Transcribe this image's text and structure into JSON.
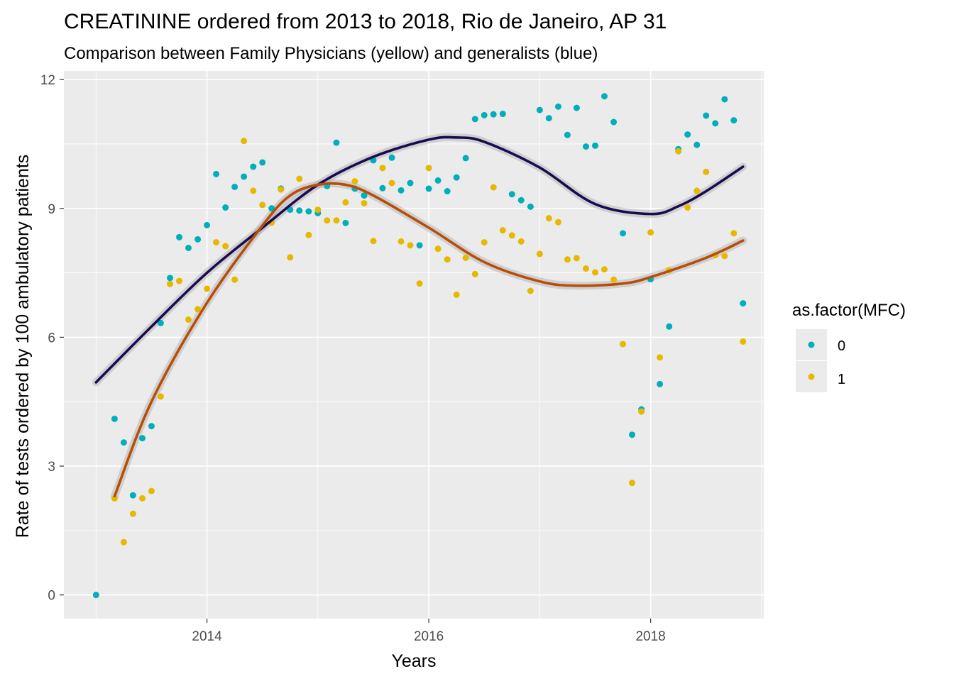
{
  "chart_data": {
    "type": "scatter",
    "title": "CREATININE ordered from 2013 to 2018, Rio de Janeiro, AP 31",
    "subtitle": "Comparison between Family Physicians (yellow) and generalists (blue)",
    "xlabel": "Years",
    "ylabel": "Rate of tests ordered by 100 ambulatory patients",
    "xlim": [
      2012.71,
      2019.02
    ],
    "ylim": [
      -0.55,
      12.2
    ],
    "x_ticks": [
      2014,
      2016,
      2018
    ],
    "x_tick_labels": [
      "2014",
      "2016",
      "2018"
    ],
    "y_ticks": [
      0,
      3,
      6,
      9,
      12
    ],
    "y_tick_labels": [
      "0",
      "3",
      "6",
      "9",
      "12"
    ],
    "grid": true,
    "legend": {
      "title": "as.factor(MFC)",
      "position": "right",
      "entries": [
        "0",
        "1"
      ]
    },
    "series": [
      {
        "name": "0",
        "color": "#00AFBB",
        "x": [
          2013.0,
          2013.167,
          2013.25,
          2013.333,
          2013.417,
          2013.5,
          2013.583,
          2013.667,
          2013.75,
          2013.833,
          2013.917,
          2014.0,
          2014.083,
          2014.167,
          2014.25,
          2014.333,
          2014.417,
          2014.5,
          2014.583,
          2014.667,
          2014.75,
          2014.833,
          2014.917,
          2015.0,
          2015.083,
          2015.167,
          2015.25,
          2015.333,
          2015.417,
          2015.5,
          2015.583,
          2015.667,
          2015.75,
          2015.833,
          2015.917,
          2016.0,
          2016.083,
          2016.167,
          2016.25,
          2016.333,
          2016.417,
          2016.5,
          2016.583,
          2016.667,
          2016.75,
          2016.833,
          2016.917,
          2017.0,
          2017.083,
          2017.167,
          2017.25,
          2017.333,
          2017.417,
          2017.5,
          2017.583,
          2017.667,
          2017.75,
          2017.833,
          2017.917,
          2018.0,
          2018.083,
          2018.167,
          2018.25,
          2018.333,
          2018.417,
          2018.5,
          2018.583,
          2018.667,
          2018.75,
          2018.833
        ],
        "values": [
          0.0,
          4.1,
          3.55,
          2.32,
          3.65,
          3.93,
          6.33,
          7.38,
          8.33,
          8.08,
          8.28,
          8.61,
          9.8,
          9.02,
          9.5,
          9.74,
          9.97,
          10.07,
          9.0,
          9.46,
          8.97,
          8.95,
          8.93,
          8.89,
          9.52,
          10.53,
          8.66,
          9.46,
          9.3,
          10.12,
          9.47,
          10.18,
          9.42,
          9.59,
          8.14,
          9.46,
          9.65,
          9.4,
          9.72,
          10.17,
          11.08,
          11.17,
          11.19,
          11.2,
          9.33,
          9.19,
          9.04,
          11.29,
          11.1,
          11.37,
          10.71,
          11.34,
          10.44,
          10.46,
          11.61,
          11.01,
          8.42,
          3.73,
          4.32,
          7.35,
          4.91,
          6.25,
          10.38,
          10.72,
          10.48,
          11.16,
          10.98,
          11.54,
          11.05,
          6.79
        ]
      },
      {
        "name": "1",
        "color": "#E7B800",
        "x": [
          2013.167,
          2013.25,
          2013.333,
          2013.417,
          2013.5,
          2013.583,
          2013.667,
          2013.75,
          2013.833,
          2013.917,
          2014.0,
          2014.083,
          2014.167,
          2014.25,
          2014.333,
          2014.417,
          2014.5,
          2014.583,
          2014.667,
          2014.75,
          2014.833,
          2014.917,
          2015.0,
          2015.083,
          2015.167,
          2015.25,
          2015.333,
          2015.417,
          2015.5,
          2015.583,
          2015.667,
          2015.75,
          2015.833,
          2015.917,
          2016.0,
          2016.083,
          2016.167,
          2016.25,
          2016.333,
          2016.417,
          2016.5,
          2016.583,
          2016.667,
          2016.75,
          2016.833,
          2016.917,
          2017.0,
          2017.083,
          2017.167,
          2017.25,
          2017.333,
          2017.417,
          2017.5,
          2017.583,
          2017.667,
          2017.75,
          2017.833,
          2017.917,
          2018.0,
          2018.083,
          2018.167,
          2018.25,
          2018.333,
          2018.417,
          2018.5,
          2018.583,
          2018.667,
          2018.75,
          2018.833
        ],
        "values": [
          2.25,
          1.23,
          1.89,
          2.25,
          2.42,
          4.62,
          7.24,
          7.31,
          6.41,
          6.65,
          7.13,
          8.21,
          8.12,
          7.34,
          10.57,
          9.41,
          9.08,
          8.67,
          9.44,
          7.86,
          9.69,
          8.38,
          8.97,
          8.72,
          8.72,
          9.14,
          9.63,
          9.12,
          8.24,
          9.94,
          9.59,
          8.23,
          8.14,
          7.25,
          9.94,
          8.06,
          7.81,
          6.99,
          7.85,
          7.47,
          8.21,
          9.49,
          8.49,
          8.37,
          8.23,
          7.08,
          7.94,
          8.77,
          8.68,
          7.81,
          7.84,
          7.6,
          7.51,
          7.58,
          7.34,
          5.84,
          2.61,
          4.27,
          8.44,
          5.53,
          7.56,
          10.33,
          9.02,
          9.41,
          9.85,
          7.91,
          7.89,
          8.42,
          5.9
        ]
      }
    ],
    "smooth_curves": [
      {
        "series": "0",
        "color": "#1A0A52",
        "x": [
          2013.0,
          2013.5,
          2014.0,
          2014.5,
          2015.0,
          2015.5,
          2016.0,
          2016.25,
          2016.5,
          2017.0,
          2017.5,
          2018.0,
          2018.25,
          2018.5,
          2018.833
        ],
        "values": [
          4.95,
          6.25,
          7.5,
          8.55,
          9.55,
          10.2,
          10.6,
          10.65,
          10.55,
          9.95,
          9.1,
          8.87,
          9.05,
          9.4,
          9.97
        ]
      },
      {
        "series": "1",
        "color": "#B84E06",
        "x": [
          2013.167,
          2013.5,
          2014.0,
          2014.5,
          2014.75,
          2015.0,
          2015.25,
          2015.5,
          2016.0,
          2016.5,
          2017.0,
          2017.33,
          2017.75,
          2018.0,
          2018.5,
          2018.833
        ],
        "values": [
          2.3,
          4.5,
          6.8,
          8.6,
          9.3,
          9.55,
          9.55,
          9.3,
          8.55,
          7.75,
          7.3,
          7.2,
          7.25,
          7.4,
          7.85,
          8.25
        ]
      }
    ]
  }
}
